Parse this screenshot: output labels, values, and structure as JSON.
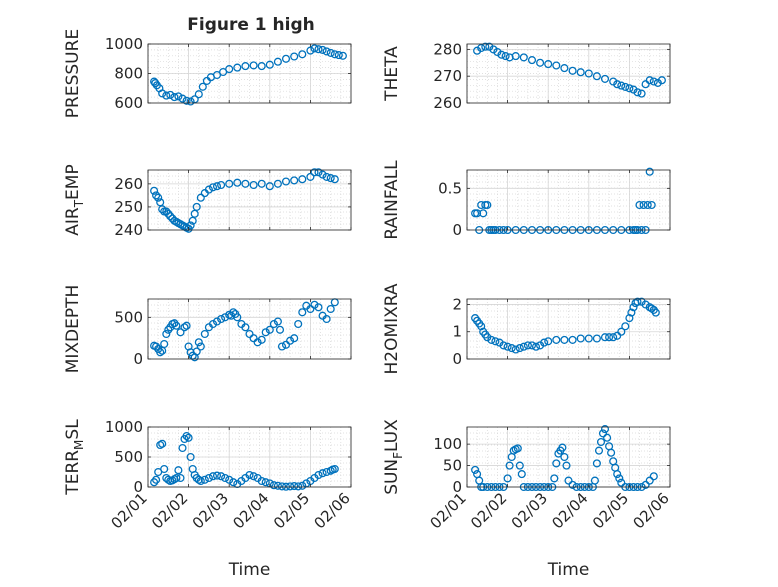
{
  "title": "Figure 1 high",
  "colors": {
    "marker": "#0072BD",
    "axis": "#262626",
    "grid": "#d6d6d6",
    "background": "#ffffff"
  },
  "chart_data": [
    {
      "type": "scatter",
      "ylabel": "PRESSURE",
      "xlabel": "",
      "xlim": [
        0,
        5
      ],
      "ylim": [
        600,
        1000
      ],
      "yticks": [
        "600",
        "800",
        "1000"
      ],
      "grid": true,
      "x": [
        0.15,
        0.18,
        0.22,
        0.28,
        0.35,
        0.45,
        0.55,
        0.65,
        0.75,
        0.85,
        0.95,
        1.05,
        1.15,
        1.25,
        1.35,
        1.45,
        1.55,
        1.7,
        1.85,
        2.0,
        2.2,
        2.4,
        2.6,
        2.8,
        3.0,
        3.2,
        3.4,
        3.6,
        3.8,
        4.0,
        4.1,
        4.2,
        4.3,
        4.4,
        4.5,
        4.6,
        4.7,
        4.8
      ],
      "y": [
        745,
        735,
        720,
        700,
        665,
        650,
        655,
        640,
        645,
        630,
        615,
        610,
        625,
        660,
        710,
        750,
        775,
        790,
        810,
        830,
        840,
        850,
        855,
        850,
        860,
        880,
        900,
        915,
        930,
        955,
        970,
        965,
        960,
        950,
        940,
        930,
        925,
        920
      ]
    },
    {
      "type": "scatter",
      "ylabel": "THETA",
      "xlabel": "",
      "xlim": [
        0,
        5
      ],
      "ylim": [
        260,
        282
      ],
      "yticks": [
        "260",
        "270",
        "280"
      ],
      "grid": true,
      "x": [
        0.25,
        0.35,
        0.45,
        0.55,
        0.65,
        0.75,
        0.85,
        0.95,
        1.05,
        1.2,
        1.4,
        1.6,
        1.8,
        2.0,
        2.2,
        2.4,
        2.6,
        2.8,
        3.0,
        3.2,
        3.4,
        3.6,
        3.7,
        3.8,
        3.9,
        4.0,
        4.1,
        4.2,
        4.3,
        4.4,
        4.5,
        4.6,
        4.7,
        4.8
      ],
      "y": [
        279.5,
        280.5,
        281,
        281,
        280,
        279,
        278,
        277.5,
        277,
        277.5,
        277,
        276,
        275,
        274.5,
        274,
        273,
        272,
        271.5,
        271,
        270,
        269,
        268,
        267,
        266.5,
        266,
        265.5,
        265,
        264,
        263.5,
        267,
        268.5,
        268,
        267.5,
        268.5
      ]
    },
    {
      "type": "scatter",
      "ylabel": "AIR_TEMP",
      "xlabel": "",
      "xlim": [
        0,
        5
      ],
      "ylim": [
        240,
        266
      ],
      "yticks": [
        "240",
        "250",
        "260"
      ],
      "grid": true,
      "x": [
        0.15,
        0.2,
        0.25,
        0.3,
        0.35,
        0.4,
        0.45,
        0.5,
        0.55,
        0.6,
        0.65,
        0.7,
        0.75,
        0.8,
        0.85,
        0.9,
        0.95,
        1.0,
        1.05,
        1.1,
        1.15,
        1.2,
        1.3,
        1.4,
        1.5,
        1.6,
        1.7,
        1.8,
        2.0,
        2.2,
        2.4,
        2.6,
        2.8,
        3.0,
        3.2,
        3.4,
        3.6,
        3.8,
        4.0,
        4.1,
        4.2,
        4.3,
        4.4,
        4.5,
        4.6
      ],
      "y": [
        257,
        255,
        254,
        252,
        249,
        248,
        248,
        247,
        246,
        245,
        244,
        243.5,
        243,
        242.5,
        242,
        241.5,
        241,
        240.5,
        242,
        244,
        247,
        250,
        254,
        256,
        257.5,
        258.5,
        259,
        259.5,
        260,
        260.5,
        260,
        259.5,
        260,
        259,
        260,
        261,
        261.5,
        262,
        263,
        265,
        265,
        264,
        263,
        262.5,
        262
      ]
    },
    {
      "type": "scatter",
      "ylabel": "RAINFALL",
      "xlabel": "",
      "xlim": [
        0,
        5
      ],
      "ylim": [
        0,
        0.72
      ],
      "yticks": [
        "0",
        "0.5"
      ],
      "grid": true,
      "x": [
        0.2,
        0.25,
        0.3,
        0.35,
        0.4,
        0.45,
        0.5,
        0.55,
        0.6,
        0.65,
        0.7,
        0.8,
        0.9,
        1.0,
        1.2,
        1.4,
        1.6,
        1.8,
        2.0,
        2.2,
        2.4,
        2.6,
        2.8,
        3.0,
        3.2,
        3.4,
        3.6,
        3.8,
        4.0,
        4.1,
        4.15,
        4.2,
        4.25,
        4.3,
        4.35,
        4.4,
        4.45,
        4.5,
        4.55
      ],
      "y": [
        0.2,
        0.2,
        0.0,
        0.3,
        0.2,
        0.3,
        0.3,
        0.0,
        0.0,
        0.0,
        0.0,
        0.0,
        0.0,
        0.0,
        0.0,
        0.0,
        0.0,
        0.0,
        0.0,
        0.0,
        0.0,
        0.0,
        0.0,
        0.0,
        0.0,
        0.0,
        0.0,
        0.0,
        0.0,
        0.0,
        0.0,
        0.0,
        0.3,
        0.0,
        0.3,
        0.0,
        0.3,
        0.7,
        0.3
      ]
    },
    {
      "type": "scatter",
      "ylabel": "MIXDEPTH",
      "xlabel": "",
      "xlim": [
        0,
        5
      ],
      "ylim": [
        0,
        720
      ],
      "yticks": [
        "0",
        "500"
      ],
      "grid": true,
      "x": [
        0.15,
        0.2,
        0.25,
        0.3,
        0.35,
        0.4,
        0.45,
        0.5,
        0.55,
        0.6,
        0.65,
        0.7,
        0.8,
        0.9,
        0.95,
        1.0,
        1.05,
        1.1,
        1.15,
        1.2,
        1.25,
        1.3,
        1.4,
        1.5,
        1.6,
        1.7,
        1.8,
        1.9,
        2.0,
        2.05,
        2.1,
        2.15,
        2.2,
        2.3,
        2.4,
        2.5,
        2.6,
        2.7,
        2.8,
        2.9,
        3.0,
        3.1,
        3.2,
        3.25,
        3.3,
        3.4,
        3.5,
        3.6,
        3.7,
        3.8,
        3.9,
        4.0,
        4.1,
        4.2,
        4.3,
        4.4,
        4.5,
        4.6
      ],
      "y": [
        160,
        150,
        120,
        80,
        100,
        180,
        300,
        350,
        380,
        420,
        430,
        400,
        320,
        380,
        400,
        150,
        80,
        40,
        20,
        90,
        200,
        150,
        300,
        380,
        420,
        450,
        480,
        500,
        530,
        520,
        560,
        540,
        500,
        420,
        380,
        300,
        250,
        200,
        230,
        320,
        350,
        420,
        450,
        350,
        150,
        170,
        220,
        250,
        420,
        560,
        640,
        600,
        650,
        620,
        520,
        480,
        600,
        680
      ]
    },
    {
      "type": "scatter",
      "ylabel": "H2OMIXRA",
      "xlabel": "",
      "xlim": [
        0,
        5
      ],
      "ylim": [
        0,
        2.2
      ],
      "yticks": [
        "0",
        "1",
        "2"
      ],
      "grid": true,
      "x": [
        0.2,
        0.25,
        0.3,
        0.35,
        0.4,
        0.45,
        0.5,
        0.6,
        0.7,
        0.8,
        0.9,
        1.0,
        1.1,
        1.2,
        1.3,
        1.4,
        1.5,
        1.6,
        1.7,
        1.8,
        1.9,
        2.0,
        2.2,
        2.4,
        2.6,
        2.8,
        3.0,
        3.2,
        3.4,
        3.5,
        3.6,
        3.7,
        3.8,
        3.9,
        4.0,
        4.05,
        4.1,
        4.15,
        4.2,
        4.3,
        4.4,
        4.5,
        4.55,
        4.6,
        4.65
      ],
      "y": [
        1.5,
        1.4,
        1.3,
        1.2,
        1.0,
        0.9,
        0.8,
        0.7,
        0.65,
        0.6,
        0.5,
        0.45,
        0.4,
        0.35,
        0.4,
        0.45,
        0.5,
        0.5,
        0.45,
        0.5,
        0.6,
        0.65,
        0.7,
        0.7,
        0.7,
        0.75,
        0.75,
        0.75,
        0.8,
        0.8,
        0.8,
        0.85,
        1.0,
        1.2,
        1.5,
        1.7,
        1.9,
        2.05,
        2.1,
        2.1,
        2.0,
        1.9,
        1.85,
        1.8,
        1.7
      ]
    },
    {
      "type": "scatter",
      "ylabel": "TERR_MSL",
      "xlabel": "Time",
      "xlim": [
        0,
        5
      ],
      "ylim": [
        0,
        1000
      ],
      "yticks": [
        "0",
        "500",
        "1000"
      ],
      "xticks": [
        "02/01",
        "02/02",
        "02/03",
        "02/04",
        "02/05",
        "02/06"
      ],
      "grid": true,
      "x": [
        0.15,
        0.2,
        0.25,
        0.3,
        0.35,
        0.4,
        0.45,
        0.5,
        0.55,
        0.6,
        0.65,
        0.7,
        0.75,
        0.8,
        0.85,
        0.9,
        0.95,
        1.0,
        1.05,
        1.1,
        1.15,
        1.2,
        1.25,
        1.3,
        1.4,
        1.5,
        1.6,
        1.7,
        1.8,
        1.9,
        2.0,
        2.1,
        2.2,
        2.3,
        2.4,
        2.5,
        2.6,
        2.7,
        2.8,
        2.9,
        3.0,
        3.1,
        3.2,
        3.3,
        3.4,
        3.5,
        3.6,
        3.7,
        3.8,
        3.9,
        4.0,
        4.1,
        4.2,
        4.3,
        4.4,
        4.5,
        4.55,
        4.6
      ],
      "y": [
        80,
        120,
        250,
        700,
        720,
        300,
        150,
        120,
        100,
        110,
        130,
        150,
        280,
        150,
        650,
        800,
        850,
        820,
        500,
        300,
        200,
        150,
        120,
        100,
        120,
        150,
        180,
        190,
        180,
        150,
        120,
        80,
        50,
        100,
        150,
        200,
        180,
        150,
        100,
        80,
        60,
        30,
        20,
        10,
        5,
        10,
        15,
        10,
        20,
        60,
        100,
        150,
        200,
        230,
        250,
        270,
        290,
        300
      ]
    },
    {
      "type": "scatter",
      "ylabel": "SUN_FLUX",
      "xlabel": "Time",
      "xlim": [
        0,
        5
      ],
      "ylim": [
        0,
        140
      ],
      "yticks": [
        "0",
        "50",
        "100"
      ],
      "xticks": [
        "02/01",
        "02/02",
        "02/03",
        "02/04",
        "02/05",
        "02/06"
      ],
      "grid": true,
      "x": [
        0.2,
        0.25,
        0.3,
        0.35,
        0.4,
        0.5,
        0.6,
        0.7,
        0.8,
        0.9,
        1.0,
        1.05,
        1.1,
        1.15,
        1.2,
        1.25,
        1.3,
        1.35,
        1.4,
        1.5,
        1.6,
        1.7,
        1.8,
        1.9,
        2.0,
        2.1,
        2.15,
        2.2,
        2.25,
        2.3,
        2.35,
        2.4,
        2.45,
        2.5,
        2.6,
        2.7,
        2.8,
        2.9,
        3.0,
        3.1,
        3.15,
        3.2,
        3.25,
        3.3,
        3.35,
        3.4,
        3.45,
        3.5,
        3.55,
        3.6,
        3.65,
        3.7,
        3.75,
        3.8,
        3.9,
        4.0,
        4.1,
        4.2,
        4.3,
        4.4,
        4.5,
        4.6
      ],
      "y": [
        40,
        30,
        15,
        0,
        0,
        0,
        0,
        0,
        0,
        0,
        20,
        50,
        70,
        85,
        88,
        90,
        50,
        30,
        0,
        0,
        0,
        0,
        0,
        0,
        0,
        0,
        20,
        55,
        78,
        85,
        92,
        70,
        50,
        15,
        5,
        0,
        0,
        0,
        0,
        0,
        15,
        55,
        85,
        105,
        125,
        135,
        115,
        95,
        80,
        60,
        45,
        30,
        20,
        10,
        0,
        0,
        0,
        0,
        0,
        5,
        15,
        25
      ]
    }
  ]
}
